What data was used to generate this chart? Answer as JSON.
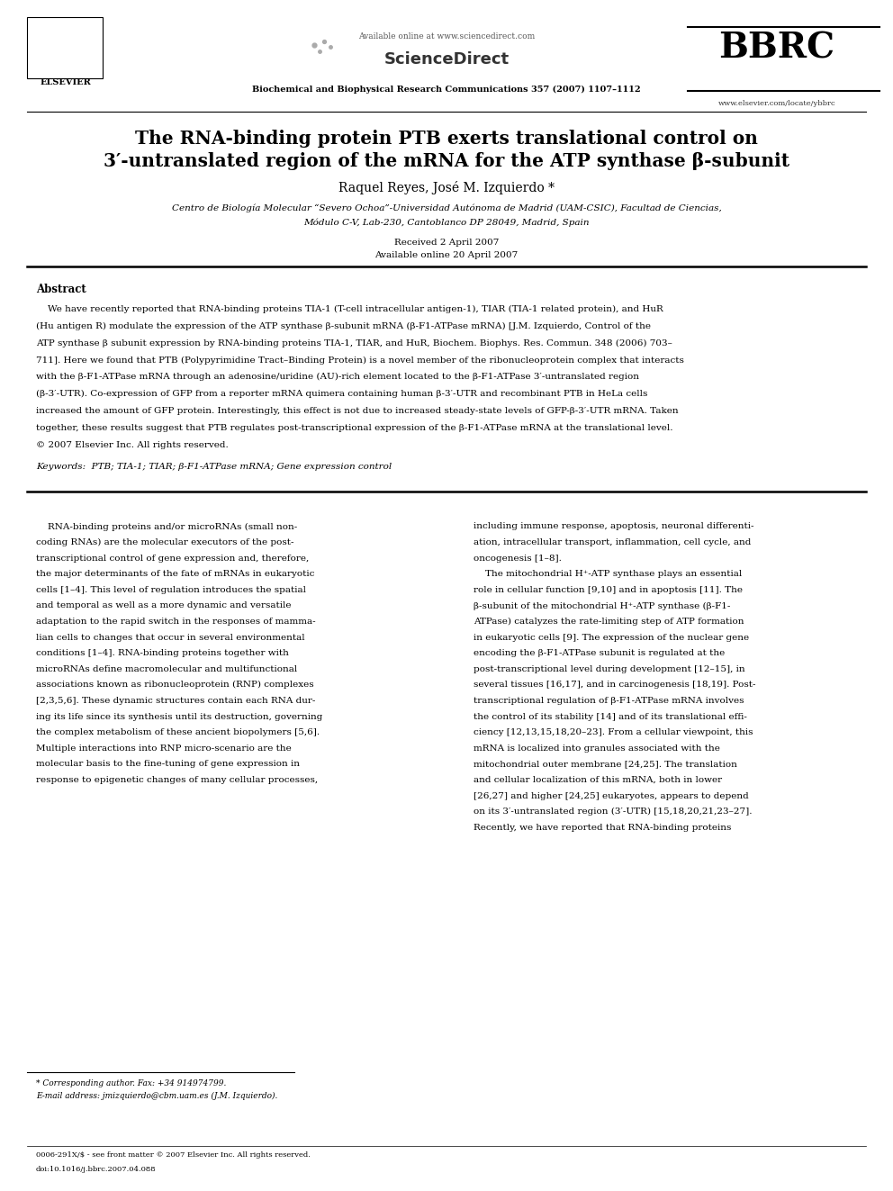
{
  "bg_color": "#ffffff",
  "header": {
    "available_online": "Available online at www.sciencedirect.com",
    "journal_name": "Biochemical and Biophysical Research Communications 357 (2007) 1107–1112",
    "sciencedirect_text": "ScienceDirect",
    "bbrc_text": "BBRC",
    "website": "www.elsevier.com/locate/ybbrc",
    "elsevier_text": "ELSEVIER"
  },
  "title_line1": "The RNA-binding protein PTB exerts translational control on",
  "title_line2": "3′-untranslated region of the mRNA for the ATP synthase β-subunit",
  "authors": "Raquel Reyes, José M. Izquierdo *",
  "affiliation1": "Centro de Biología Molecular “Severo Ochoa”-Universidad Autónoma de Madrid (UAM-CSIC), Facultad de Ciencias,",
  "affiliation2": "Módulo C-V, Lab-230, Cantoblanco DP 28049, Madrid, Spain",
  "received": "Received 2 April 2007",
  "available": "Available online 20 April 2007",
  "abstract_title": "Abstract",
  "keywords": "Keywords:  PTB; TIA-1; TIAR; β-F1-ATPase mRNA; Gene expression control",
  "footnote_star": "* Corresponding author. Fax: +34 914974799.",
  "footnote_email": "E-mail address: jmizquierdo@cbm.uam.es (J.M. Izquierdo).",
  "footer_left": "0006-291X/$ - see front matter © 2007 Elsevier Inc. All rights reserved.",
  "footer_doi": "doi:10.1016/j.bbrc.2007.04.088",
  "abstract_lines": [
    "    We have recently reported that RNA-binding proteins TIA-1 (T-cell intracellular antigen-1), TIAR (TIA-1 related protein), and HuR",
    "(Hu antigen R) modulate the expression of the ATP synthase β-subunit mRNA (β-F1-ATPase mRNA) [J.M. Izquierdo, Control of the",
    "ATP synthase β subunit expression by RNA-binding proteins TIA-1, TIAR, and HuR, Biochem. Biophys. Res. Commun. 348 (2006) 703–",
    "711]. Here we found that PTB (Polypyrimidine Tract–Binding Protein) is a novel member of the ribonucleoprotein complex that interacts",
    "with the β-F1-ATPase mRNA through an adenosine/uridine (AU)-rich element located to the β-F1-ATPase 3′-untranslated region",
    "(β-3′-UTR). Co-expression of GFP from a reporter mRNA quimera containing human β-3′-UTR and recombinant PTB in HeLa cells",
    "increased the amount of GFP protein. Interestingly, this effect is not due to increased steady-state levels of GFP-β-3′-UTR mRNA. Taken",
    "together, these results suggest that PTB regulates post-transcriptional expression of the β-F1-ATPase mRNA at the translational level.",
    "© 2007 Elsevier Inc. All rights reserved."
  ],
  "col1_lines": [
    "    RNA-binding proteins and/or microRNAs (small non-",
    "coding RNAs) are the molecular executors of the post-",
    "transcriptional control of gene expression and, therefore,",
    "the major determinants of the fate of mRNAs in eukaryotic",
    "cells [1–4]. This level of regulation introduces the spatial",
    "and temporal as well as a more dynamic and versatile",
    "adaptation to the rapid switch in the responses of mamma-",
    "lian cells to changes that occur in several environmental",
    "conditions [1–4]. RNA-binding proteins together with",
    "microRNAs define macromolecular and multifunctional",
    "associations known as ribonucleoprotein (RNP) complexes",
    "[2,3,5,6]. These dynamic structures contain each RNA dur-",
    "ing its life since its synthesis until its destruction, governing",
    "the complex metabolism of these ancient biopolymers [5,6].",
    "Multiple interactions into RNP micro-scenario are the",
    "molecular basis to the fine-tuning of gene expression in",
    "response to epigenetic changes of many cellular processes,"
  ],
  "col2_lines": [
    "including immune response, apoptosis, neuronal differenti-",
    "ation, intracellular transport, inflammation, cell cycle, and",
    "oncogenesis [1–8].",
    "    The mitochondrial H⁺-ATP synthase plays an essential",
    "role in cellular function [9,10] and in apoptosis [11]. The",
    "β-subunit of the mitochondrial H⁺-ATP synthase (β-F1-",
    "ATPase) catalyzes the rate-limiting step of ATP formation",
    "in eukaryotic cells [9]. The expression of the nuclear gene",
    "encoding the β-F1-ATPase subunit is regulated at the",
    "post-transcriptional level during development [12–15], in",
    "several tissues [16,17], and in carcinogenesis [18,19]. Post-",
    "transcriptional regulation of β-F1-ATPase mRNA involves",
    "the control of its stability [14] and of its translational effi-",
    "ciency [12,13,15,18,20–23]. From a cellular viewpoint, this",
    "mRNA is localized into granules associated with the",
    "mitochondrial outer membrane [24,25]. The translation",
    "and cellular localization of this mRNA, both in lower",
    "[26,27] and higher [24,25] eukaryotes, appears to depend",
    "on its 3′-untranslated region (3′-UTR) [15,18,20,21,23–27].",
    "Recently, we have reported that RNA-binding proteins"
  ]
}
